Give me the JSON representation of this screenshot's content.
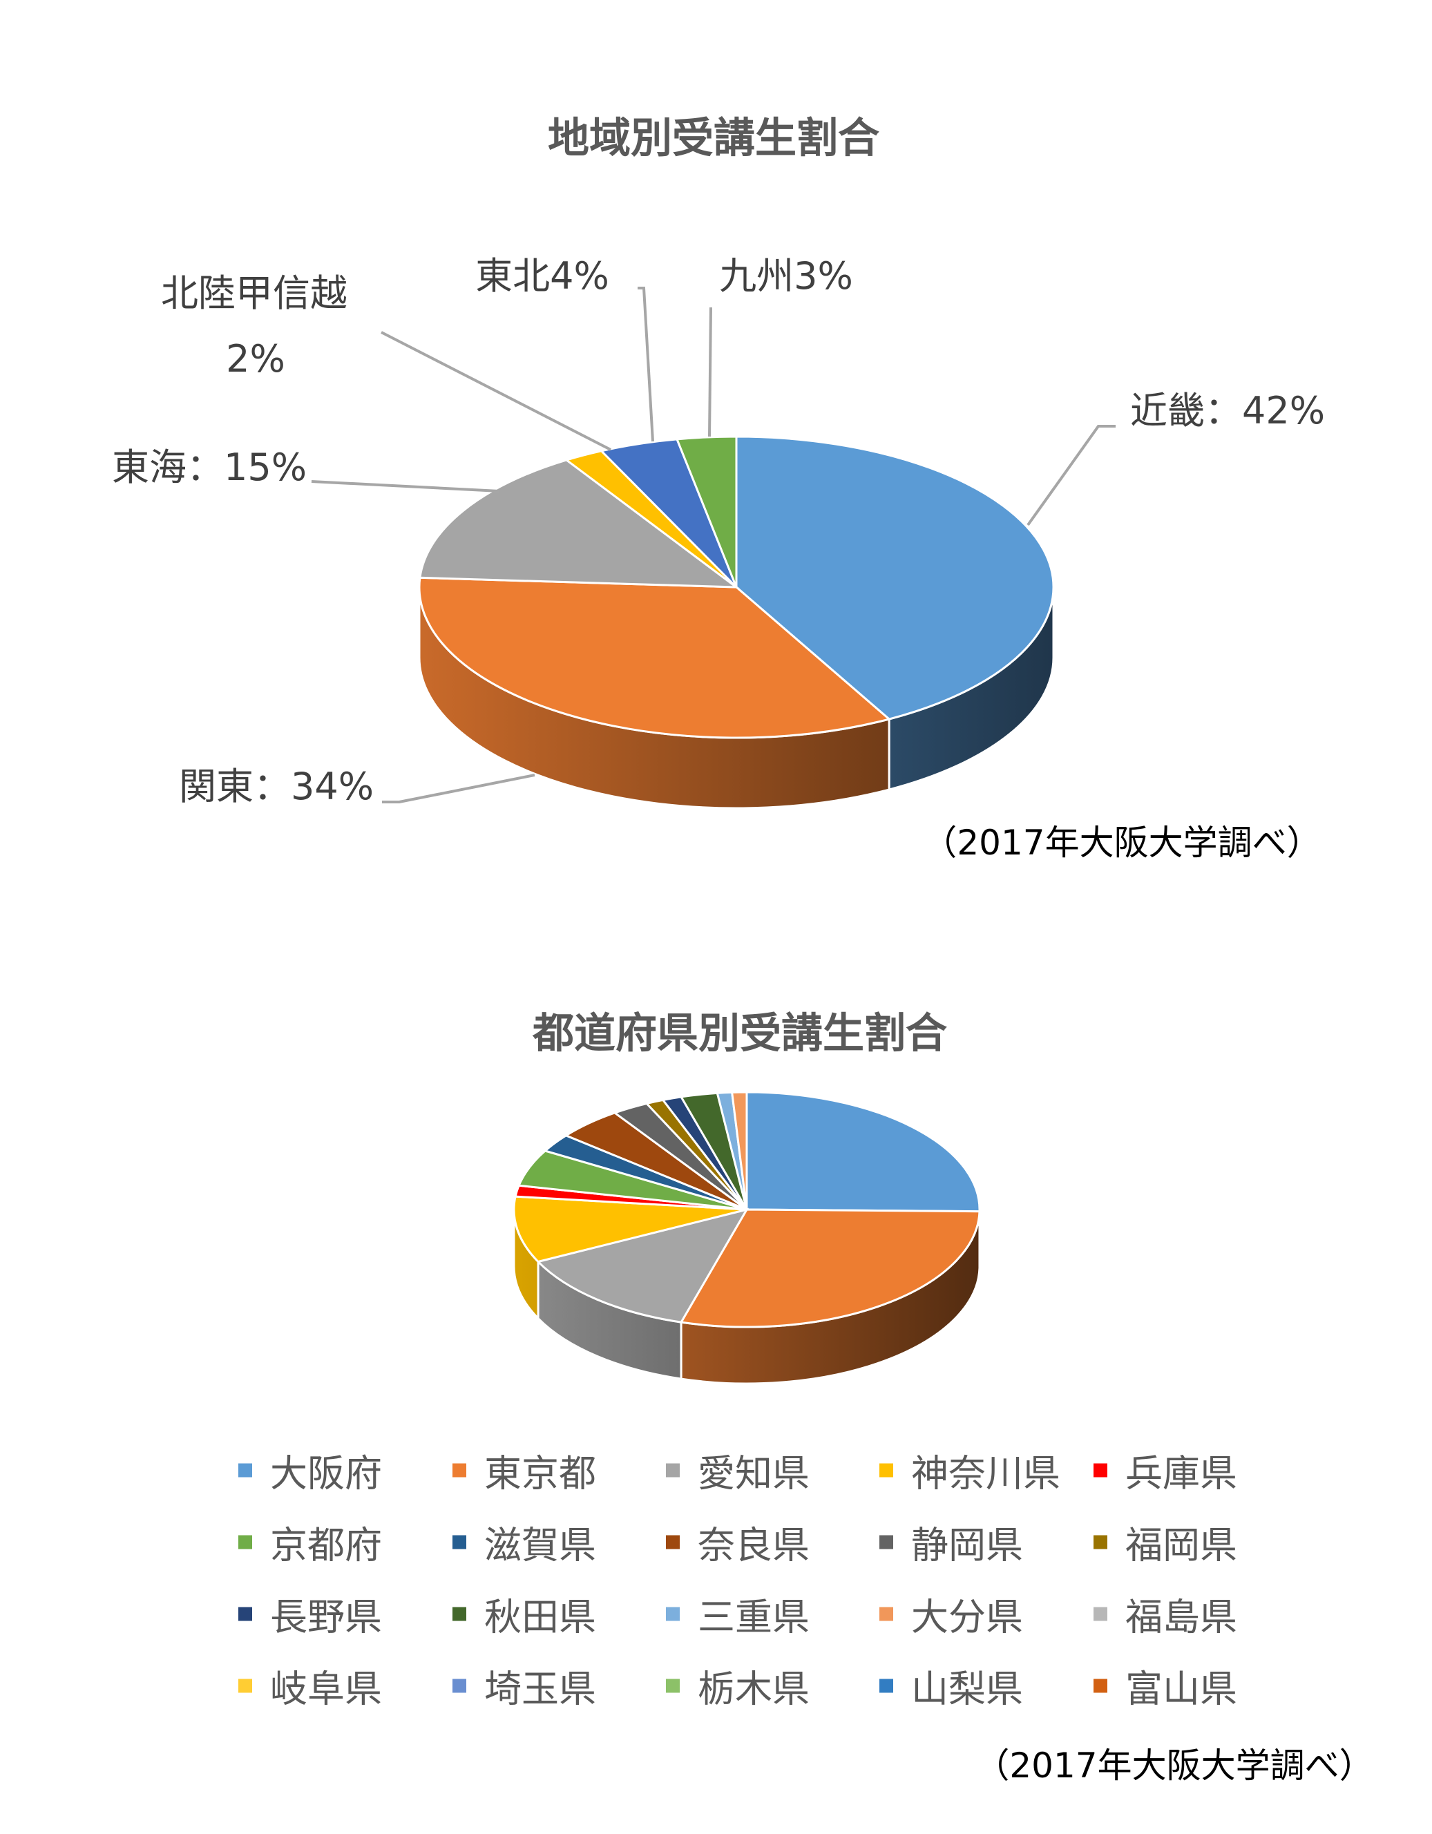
{
  "chart_data": [
    {
      "type": "pie",
      "title": "地域別受講生割合",
      "categories": [
        "近畿",
        "関東",
        "東海",
        "北陸甲信越",
        "東北",
        "九州"
      ],
      "values": [
        42,
        34,
        15,
        2,
        4,
        3
      ],
      "data_labels": [
        "近畿：42%",
        "関東：34%",
        "東海：15%",
        "北陸甲信越",
        "東北4%",
        "九州3%"
      ],
      "data_label_extra": "2%",
      "colors": [
        "#5B9BD5",
        "#ED7D31",
        "#A5A5A5",
        "#FFC000",
        "#4472C4",
        "#70AD47"
      ],
      "style": "3d",
      "legend": "none",
      "source_note": "（2017年大阪大学調べ）"
    },
    {
      "type": "pie",
      "title": "都道府県別受講生割合",
      "categories": [
        "大阪府",
        "東京都",
        "愛知県",
        "神奈川県",
        "兵庫県",
        "京都府",
        "滋賀県",
        "奈良県",
        "静岡県",
        "福岡県",
        "長野県",
        "秋田県",
        "三重県",
        "大分県",
        "福島県",
        "岐阜県",
        "埼玉県",
        "栃木県",
        "山梨県",
        "富山県"
      ],
      "values": [
        25,
        29,
        13,
        9,
        1.5,
        5,
        2.5,
        4.5,
        2.5,
        1.2,
        1.3,
        2.5,
        1,
        1,
        0,
        0,
        0,
        0,
        0,
        0
      ],
      "colors": [
        "#5B9BD5",
        "#ED7D31",
        "#A5A5A5",
        "#FFC000",
        "#FF0000",
        "#70AD47",
        "#255E91",
        "#9E480E",
        "#636363",
        "#997300",
        "#264478",
        "#43682B",
        "#7CAFDD",
        "#F1975A",
        "#B7B7B7",
        "#FFCD33",
        "#698ED0",
        "#8CC168",
        "#327DC2",
        "#D26012"
      ],
      "style": "3d",
      "legend": "bottom",
      "source_note": "（2017年大阪大学調べ）"
    }
  ]
}
